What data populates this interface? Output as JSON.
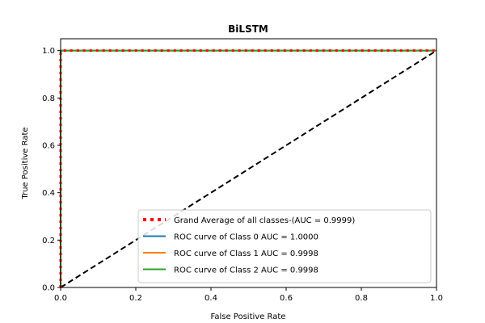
{
  "chart_data": {
    "type": "line",
    "title": "BiLSTM",
    "xlabel": "False Positive Rate",
    "ylabel": "True Positive Rate",
    "xlim": [
      0.0,
      1.0
    ],
    "ylim": [
      0.0,
      1.05
    ],
    "xticks": [
      "0.0",
      "0.2",
      "0.4",
      "0.6",
      "0.8",
      "1.0"
    ],
    "yticks": [
      "0.0",
      "0.2",
      "0.4",
      "0.6",
      "0.8",
      "1.0"
    ],
    "grid": false,
    "legend_position": "lower right",
    "series": [
      {
        "name": "Grand Average of all classes-(AUC = 0.9999)",
        "color": "#ff0000",
        "style": "dotted",
        "x": [
          0.0,
          0.0,
          0.003,
          1.0
        ],
        "y": [
          0.0,
          0.99,
          1.0,
          1.0
        ]
      },
      {
        "name": "ROC curve of Class 0 AUC = 1.0000",
        "color": "#1f77b4",
        "style": "solid",
        "x": [
          0.0,
          0.0,
          1.0
        ],
        "y": [
          0.0,
          1.0,
          1.0
        ]
      },
      {
        "name": "ROC curve of Class 1 AUC = 0.9998",
        "color": "#ff7f0e",
        "style": "solid",
        "x": [
          0.0,
          0.0,
          0.003,
          1.0
        ],
        "y": [
          0.0,
          0.99,
          1.0,
          1.0
        ]
      },
      {
        "name": "ROC curve of Class 2 AUC = 0.9998",
        "color": "#2ca02c",
        "style": "solid",
        "x": [
          0.0,
          0.0,
          0.003,
          1.0
        ],
        "y": [
          0.0,
          0.99,
          1.0,
          1.0
        ]
      }
    ],
    "reference_line": {
      "x": [
        0.0,
        1.0
      ],
      "y": [
        0.0,
        1.0
      ],
      "color": "#000000",
      "style": "dashed"
    }
  }
}
